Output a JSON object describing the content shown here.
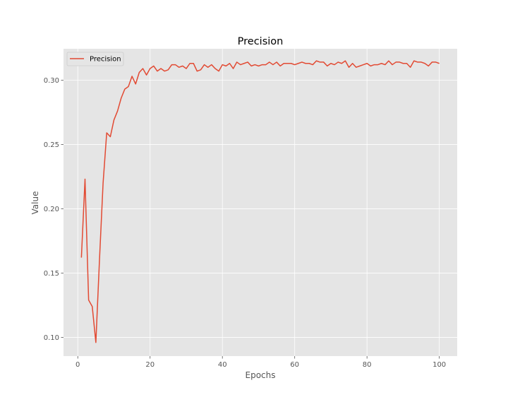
{
  "chart_data": {
    "type": "line",
    "title": "Precision",
    "xlabel": "Epochs",
    "ylabel": "Value",
    "xlim": [
      -3.95,
      104.95
    ],
    "ylim": [
      0.0854,
      0.3244
    ],
    "xticks": [
      0,
      20,
      40,
      60,
      80,
      100
    ],
    "yticks": [
      0.1,
      0.15,
      0.2,
      0.25,
      0.3
    ],
    "grid": true,
    "legend_position": "top-left",
    "colors": {
      "background": "#e5e5e5",
      "grid": "#ffffff",
      "series": "#e24a33"
    },
    "series": [
      {
        "name": "Precision",
        "x": [
          1,
          2,
          3,
          4,
          5,
          6,
          7,
          8,
          9,
          10,
          11,
          12,
          13,
          14,
          15,
          16,
          17,
          18,
          19,
          20,
          21,
          22,
          23,
          24,
          25,
          26,
          27,
          28,
          29,
          30,
          31,
          32,
          33,
          34,
          35,
          36,
          37,
          38,
          39,
          40,
          41,
          42,
          43,
          44,
          45,
          46,
          47,
          48,
          49,
          50,
          51,
          52,
          53,
          54,
          55,
          56,
          57,
          58,
          59,
          60,
          61,
          62,
          63,
          64,
          65,
          66,
          67,
          68,
          69,
          70,
          71,
          72,
          73,
          74,
          75,
          76,
          77,
          78,
          79,
          80,
          81,
          82,
          83,
          84,
          85,
          86,
          87,
          88,
          89,
          90,
          91,
          92,
          93,
          94,
          95,
          96,
          97,
          98,
          99,
          100
        ],
        "values": [
          0.162,
          0.223,
          0.129,
          0.124,
          0.096,
          0.16,
          0.22,
          0.259,
          0.256,
          0.269,
          0.276,
          0.286,
          0.293,
          0.295,
          0.303,
          0.297,
          0.306,
          0.309,
          0.304,
          0.309,
          0.311,
          0.307,
          0.309,
          0.307,
          0.308,
          0.312,
          0.312,
          0.31,
          0.311,
          0.309,
          0.313,
          0.313,
          0.307,
          0.308,
          0.312,
          0.31,
          0.312,
          0.309,
          0.307,
          0.312,
          0.311,
          0.313,
          0.309,
          0.314,
          0.312,
          0.313,
          0.314,
          0.311,
          0.312,
          0.311,
          0.312,
          0.312,
          0.314,
          0.312,
          0.314,
          0.311,
          0.313,
          0.313,
          0.313,
          0.312,
          0.313,
          0.314,
          0.313,
          0.313,
          0.312,
          0.315,
          0.314,
          0.314,
          0.311,
          0.313,
          0.312,
          0.314,
          0.313,
          0.315,
          0.31,
          0.313,
          0.31,
          0.311,
          0.312,
          0.313,
          0.311,
          0.312,
          0.312,
          0.313,
          0.312,
          0.315,
          0.312,
          0.314,
          0.314,
          0.313,
          0.313,
          0.31,
          0.315,
          0.314,
          0.314,
          0.313,
          0.311,
          0.314,
          0.314,
          0.313
        ]
      }
    ]
  }
}
